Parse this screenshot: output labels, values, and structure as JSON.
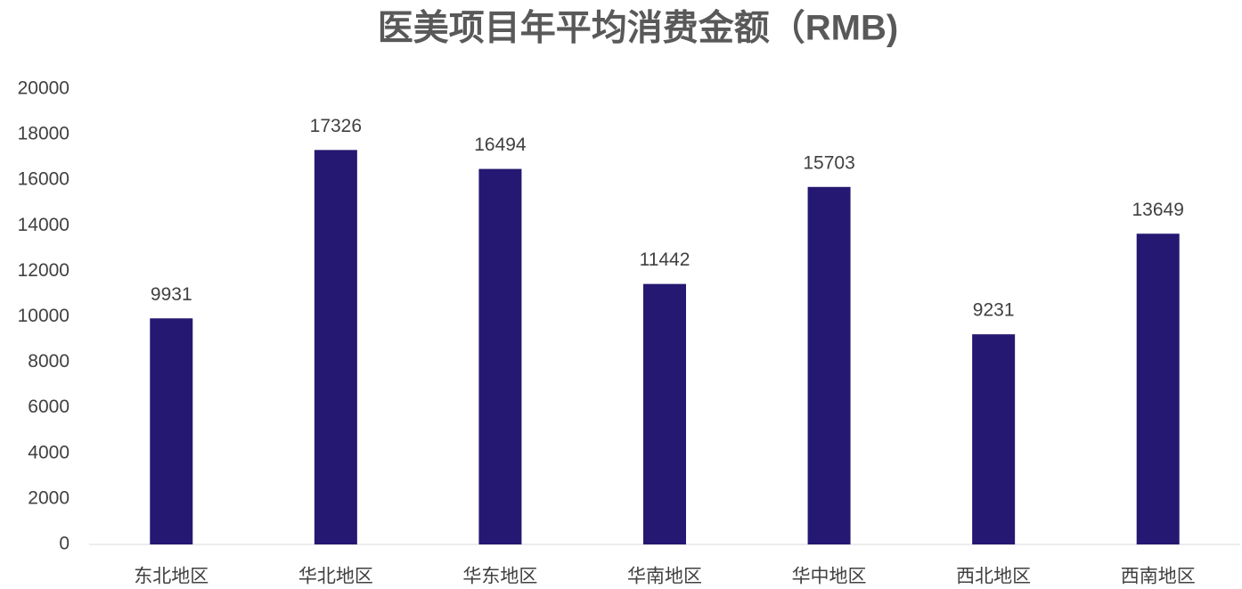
{
  "chart_data": {
    "type": "bar",
    "title": "医美项目年平均消费金额（RMB)",
    "categories": [
      "东北地区",
      "华北地区",
      "华东地区",
      "华南地区",
      "华中地区",
      "西北地区",
      "西南地区"
    ],
    "values": [
      9931,
      17326,
      16494,
      11442,
      15703,
      9231,
      13649
    ],
    "color": "#251872",
    "ylim": [
      0,
      20000
    ],
    "yticks": [
      0,
      2000,
      4000,
      6000,
      8000,
      10000,
      12000,
      14000,
      16000,
      18000,
      20000
    ],
    "grid": false
  }
}
